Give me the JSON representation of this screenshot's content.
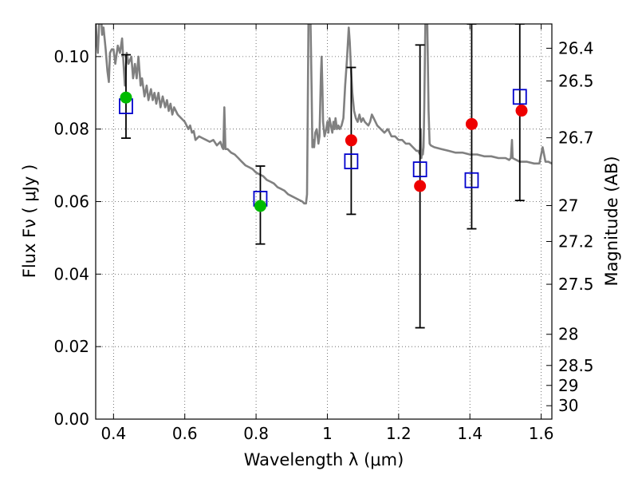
{
  "chart_data": {
    "type": "scatter",
    "title": "",
    "xlabel": "Wavelength  λ (μm)",
    "ylabel": "Flux  Fν ( μJy )",
    "y2label": "Magnitude (AB)",
    "xlim": [
      0.35,
      1.63
    ],
    "ylim": [
      0.0,
      0.109
    ],
    "grid": true,
    "x_ticks": [
      0.4,
      0.6,
      0.8,
      1.0,
      1.2,
      1.4,
      1.6
    ],
    "x_tick_labels": [
      "0.4",
      "0.6",
      "0.8",
      "1",
      "1.2",
      "1.4",
      "1.6"
    ],
    "y_ticks": [
      0.0,
      0.02,
      0.04,
      0.06,
      0.08,
      0.1
    ],
    "y_tick_labels": [
      "0.00",
      "0.02",
      "0.04",
      "0.06",
      "0.08",
      "0.10"
    ],
    "y2_ticks": [
      {
        "label": "26.4",
        "flux": 0.1023
      },
      {
        "label": "26.5",
        "flux": 0.0933
      },
      {
        "label": "26.7",
        "flux": 0.0776
      },
      {
        "label": "27",
        "flux": 0.0589
      },
      {
        "label": "27.2",
        "flux": 0.049
      },
      {
        "label": "27.5",
        "flux": 0.0372
      },
      {
        "label": "28",
        "flux": 0.0234
      },
      {
        "label": "28.5",
        "flux": 0.0148
      },
      {
        "label": "29",
        "flux": 0.0093
      },
      {
        "label": "30",
        "flux": 0.0037
      }
    ],
    "series": [
      {
        "marker": "line",
        "color": "#808080",
        "points": [
          [
            0.35,
            0.11
          ],
          [
            0.353,
            0.104
          ],
          [
            0.356,
            0.101
          ],
          [
            0.36,
            0.11
          ],
          [
            0.365,
            0.112
          ],
          [
            0.368,
            0.106
          ],
          [
            0.372,
            0.108
          ],
          [
            0.378,
            0.102
          ],
          [
            0.383,
            0.096
          ],
          [
            0.387,
            0.093
          ],
          [
            0.39,
            0.101
          ],
          [
            0.395,
            0.102
          ],
          [
            0.4,
            0.102
          ],
          [
            0.405,
            0.098
          ],
          [
            0.412,
            0.103
          ],
          [
            0.418,
            0.101
          ],
          [
            0.424,
            0.105
          ],
          [
            0.428,
            0.098
          ],
          [
            0.432,
            0.092
          ],
          [
            0.437,
            0.101
          ],
          [
            0.442,
            0.098
          ],
          [
            0.45,
            0.1
          ],
          [
            0.455,
            0.094
          ],
          [
            0.46,
            0.098
          ],
          [
            0.465,
            0.094
          ],
          [
            0.47,
            0.1
          ],
          [
            0.476,
            0.092
          ],
          [
            0.48,
            0.094
          ],
          [
            0.487,
            0.089
          ],
          [
            0.493,
            0.092
          ],
          [
            0.498,
            0.088
          ],
          [
            0.505,
            0.091
          ],
          [
            0.51,
            0.088
          ],
          [
            0.515,
            0.09
          ],
          [
            0.52,
            0.087
          ],
          [
            0.526,
            0.09
          ],
          [
            0.532,
            0.086
          ],
          [
            0.538,
            0.089
          ],
          [
            0.545,
            0.086
          ],
          [
            0.55,
            0.088
          ],
          [
            0.555,
            0.085
          ],
          [
            0.56,
            0.087
          ],
          [
            0.565,
            0.084
          ],
          [
            0.57,
            0.086
          ],
          [
            0.58,
            0.084
          ],
          [
            0.59,
            0.083
          ],
          [
            0.6,
            0.082
          ],
          [
            0.61,
            0.08
          ],
          [
            0.615,
            0.081
          ],
          [
            0.62,
            0.079
          ],
          [
            0.625,
            0.0795
          ],
          [
            0.63,
            0.077
          ],
          [
            0.64,
            0.078
          ],
          [
            0.65,
            0.0775
          ],
          [
            0.66,
            0.077
          ],
          [
            0.67,
            0.0765
          ],
          [
            0.68,
            0.077
          ],
          [
            0.69,
            0.0755
          ],
          [
            0.7,
            0.0765
          ],
          [
            0.705,
            0.075
          ],
          [
            0.708,
            0.0745
          ],
          [
            0.711,
            0.086
          ],
          [
            0.714,
            0.0745
          ],
          [
            0.72,
            0.0745
          ],
          [
            0.73,
            0.0735
          ],
          [
            0.74,
            0.073
          ],
          [
            0.75,
            0.072
          ],
          [
            0.76,
            0.071
          ],
          [
            0.77,
            0.07
          ],
          [
            0.78,
            0.0695
          ],
          [
            0.79,
            0.069
          ],
          [
            0.8,
            0.068
          ],
          [
            0.81,
            0.0675
          ],
          [
            0.82,
            0.067
          ],
          [
            0.83,
            0.066
          ],
          [
            0.84,
            0.0655
          ],
          [
            0.85,
            0.065
          ],
          [
            0.86,
            0.064
          ],
          [
            0.87,
            0.0635
          ],
          [
            0.88,
            0.063
          ],
          [
            0.89,
            0.062
          ],
          [
            0.9,
            0.0615
          ],
          [
            0.91,
            0.061
          ],
          [
            0.92,
            0.0605
          ],
          [
            0.93,
            0.06
          ],
          [
            0.935,
            0.0595
          ],
          [
            0.94,
            0.0595
          ],
          [
            0.943,
            0.062
          ],
          [
            0.945,
            0.085
          ],
          [
            0.947,
            0.11
          ],
          [
            0.952,
            0.115
          ],
          [
            0.956,
            0.09
          ],
          [
            0.958,
            0.075
          ],
          [
            0.961,
            0.077
          ],
          [
            0.963,
            0.075
          ],
          [
            0.966,
            0.079
          ],
          [
            0.97,
            0.08
          ],
          [
            0.975,
            0.076
          ],
          [
            0.978,
            0.078
          ],
          [
            0.982,
            0.095
          ],
          [
            0.984,
            0.1
          ],
          [
            0.986,
            0.092
          ],
          [
            0.988,
            0.082
          ],
          [
            0.992,
            0.078
          ],
          [
            0.997,
            0.08
          ],
          [
            1.0,
            0.082
          ],
          [
            1.003,
            0.079
          ],
          [
            1.006,
            0.083
          ],
          [
            1.01,
            0.081
          ],
          [
            1.014,
            0.079
          ],
          [
            1.017,
            0.082
          ],
          [
            1.02,
            0.08
          ],
          [
            1.023,
            0.083
          ],
          [
            1.027,
            0.08
          ],
          [
            1.031,
            0.081
          ],
          [
            1.035,
            0.08
          ],
          [
            1.04,
            0.081
          ],
          [
            1.045,
            0.083
          ],
          [
            1.05,
            0.092
          ],
          [
            1.055,
            0.099
          ],
          [
            1.06,
            0.108
          ],
          [
            1.063,
            0.104
          ],
          [
            1.066,
            0.097
          ],
          [
            1.07,
            0.09
          ],
          [
            1.075,
            0.085
          ],
          [
            1.08,
            0.083
          ],
          [
            1.085,
            0.082
          ],
          [
            1.09,
            0.084
          ],
          [
            1.095,
            0.082
          ],
          [
            1.1,
            0.083
          ],
          [
            1.105,
            0.082
          ],
          [
            1.11,
            0.0815
          ],
          [
            1.115,
            0.081
          ],
          [
            1.12,
            0.082
          ],
          [
            1.125,
            0.084
          ],
          [
            1.13,
            0.083
          ],
          [
            1.14,
            0.081
          ],
          [
            1.15,
            0.08
          ],
          [
            1.16,
            0.079
          ],
          [
            1.17,
            0.08
          ],
          [
            1.18,
            0.078
          ],
          [
            1.19,
            0.078
          ],
          [
            1.2,
            0.077
          ],
          [
            1.21,
            0.077
          ],
          [
            1.22,
            0.076
          ],
          [
            1.23,
            0.076
          ],
          [
            1.24,
            0.075
          ],
          [
            1.25,
            0.074
          ],
          [
            1.255,
            0.074
          ],
          [
            1.26,
            0.073
          ],
          [
            1.262,
            0.08
          ],
          [
            1.264,
            0.072
          ],
          [
            1.266,
            0.074
          ],
          [
            1.268,
            0.073
          ],
          [
            1.27,
            0.075
          ],
          [
            1.272,
            0.086
          ],
          [
            1.275,
            0.11
          ],
          [
            1.28,
            0.112
          ],
          [
            1.284,
            0.085
          ],
          [
            1.287,
            0.076
          ],
          [
            1.29,
            0.0755
          ],
          [
            1.3,
            0.075
          ],
          [
            1.32,
            0.0745
          ],
          [
            1.34,
            0.074
          ],
          [
            1.36,
            0.0735
          ],
          [
            1.38,
            0.0735
          ],
          [
            1.4,
            0.073
          ],
          [
            1.42,
            0.073
          ],
          [
            1.44,
            0.0725
          ],
          [
            1.46,
            0.0725
          ],
          [
            1.48,
            0.072
          ],
          [
            1.5,
            0.072
          ],
          [
            1.51,
            0.0715
          ],
          [
            1.515,
            0.072
          ],
          [
            1.518,
            0.077
          ],
          [
            1.52,
            0.072
          ],
          [
            1.53,
            0.0715
          ],
          [
            1.54,
            0.071
          ],
          [
            1.56,
            0.071
          ],
          [
            1.58,
            0.0705
          ],
          [
            1.595,
            0.0705
          ],
          [
            1.6,
            0.073
          ],
          [
            1.604,
            0.075
          ],
          [
            1.608,
            0.073
          ],
          [
            1.612,
            0.071
          ],
          [
            1.62,
            0.071
          ],
          [
            1.63,
            0.0705
          ]
        ]
      },
      {
        "marker": "errorbar",
        "color": "#000000",
        "points": [
          {
            "x": 0.435,
            "y": 0.0863,
            "ylow": 0.0775,
            "yhigh": 0.1005
          },
          {
            "x": 0.812,
            "y": 0.0608,
            "ylow": 0.0483,
            "yhigh": 0.0698
          },
          {
            "x": 1.067,
            "y": 0.0711,
            "ylow": 0.0565,
            "yhigh": 0.097
          },
          {
            "x": 1.26,
            "y": 0.0689,
            "ylow": 0.0252,
            "yhigh": 0.1032
          },
          {
            "x": 1.405,
            "y": 0.0659,
            "ylow": 0.0525,
            "yhigh": 0.109
          },
          {
            "x": 1.54,
            "y": 0.0889,
            "ylow": 0.0603,
            "yhigh": 0.109
          }
        ]
      },
      {
        "marker": "open-square",
        "color": "#0000cc",
        "points": [
          [
            0.435,
            0.0863
          ],
          [
            0.812,
            0.0608
          ],
          [
            1.067,
            0.0711
          ],
          [
            1.26,
            0.0689
          ],
          [
            1.405,
            0.0659
          ],
          [
            1.54,
            0.0889
          ]
        ]
      },
      {
        "marker": "filled-circle",
        "color": "#00bb00",
        "points": [
          [
            0.435,
            0.0887
          ],
          [
            0.812,
            0.0588
          ]
        ]
      },
      {
        "marker": "filled-circle",
        "color": "#ee0000",
        "points": [
          [
            1.067,
            0.0769
          ],
          [
            1.26,
            0.0643
          ],
          [
            1.405,
            0.0814
          ],
          [
            1.545,
            0.0851
          ]
        ]
      }
    ]
  }
}
